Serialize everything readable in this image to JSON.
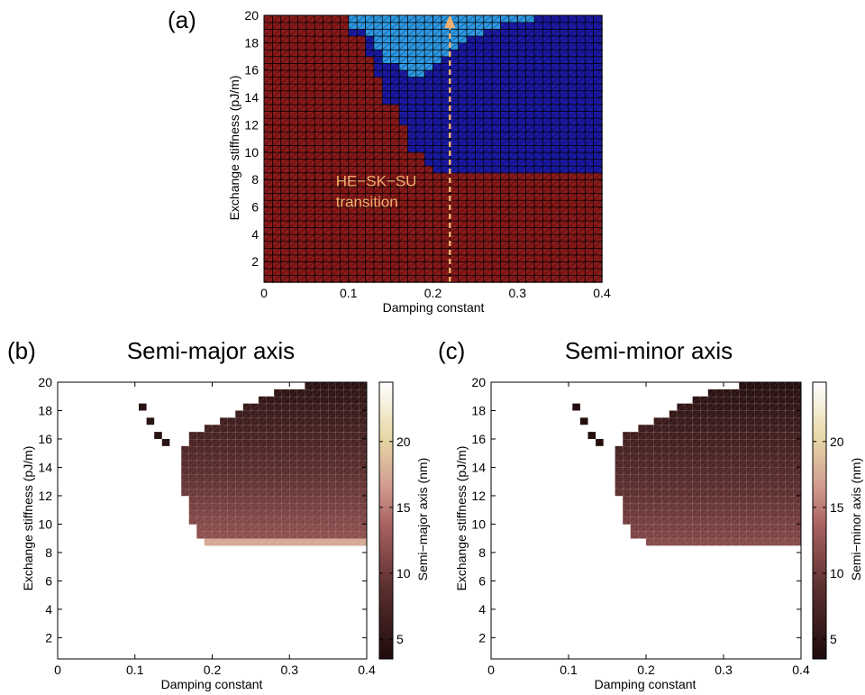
{
  "chart_data": [
    {
      "panel_label": "(a)",
      "type": "heatmap",
      "title": "",
      "xlabel": "Damping constant",
      "ylabel": "Exchange stiffness (pJ/m)",
      "xlim": [
        0,
        0.4
      ],
      "ylim": [
        0.5,
        20
      ],
      "xticks": [
        0,
        0.1,
        0.2,
        0.3,
        0.4
      ],
      "xtick_labels": [
        "0",
        "0.1",
        "0.2",
        "0.3",
        "0.4"
      ],
      "yticks": [
        2,
        4,
        6,
        8,
        10,
        12,
        14,
        16,
        18,
        20
      ],
      "ytick_labels": [
        "2",
        "4",
        "6",
        "8",
        "10",
        "12",
        "14",
        "16",
        "18",
        "20"
      ],
      "grid": {
        "x_start": 0,
        "x_step": 0.01,
        "x_count": 40,
        "y_start": 0.5,
        "y_step": 0.5,
        "y_count": 39
      },
      "categories": [
        "HE",
        "SK",
        "SU"
      ],
      "category_colors": {
        "HE": "#8b1a1a",
        "SK": "#1a1aa6",
        "SU": "#2e9ae6"
      },
      "sk_region": [
        {
          "y_from": 8.5,
          "y_to": 9.0,
          "x_from": 0.195
        },
        {
          "y_from": 9.0,
          "y_to": 10.0,
          "x_from": 0.185
        },
        {
          "y_from": 10.0,
          "y_to": 11.0,
          "x_from": 0.175
        },
        {
          "y_from": 11.0,
          "y_to": 12.0,
          "x_from": 0.165
        },
        {
          "y_from": 12.0,
          "y_to": 13.5,
          "x_from": 0.155
        },
        {
          "y_from": 13.5,
          "y_to": 14.5,
          "x_from": 0.145
        },
        {
          "y_from": 14.5,
          "y_to": 15.5,
          "x_from": 0.135
        },
        {
          "y_from": 15.5,
          "y_to": 17.0,
          "x_from": 0.125
        },
        {
          "y_from": 17.0,
          "y_to": 18.5,
          "x_from": 0.115
        },
        {
          "y_from": 18.5,
          "y_to": 20.5,
          "x_from": 0.105
        }
      ],
      "su_region": [
        {
          "y_from": 15.5,
          "y_to": 16.0,
          "x_from": 0.165,
          "x_to": 0.195
        },
        {
          "y_from": 16.0,
          "y_to": 16.5,
          "x_from": 0.155,
          "x_to": 0.205
        },
        {
          "y_from": 16.5,
          "y_to": 17.0,
          "x_from": 0.145,
          "x_to": 0.215
        },
        {
          "y_from": 17.0,
          "y_to": 17.5,
          "x_from": 0.135,
          "x_to": 0.225
        },
        {
          "y_from": 17.5,
          "y_to": 18.0,
          "x_from": 0.125,
          "x_to": 0.235
        },
        {
          "y_from": 18.0,
          "y_to": 18.5,
          "x_from": 0.125,
          "x_to": 0.245
        },
        {
          "y_from": 18.5,
          "y_to": 19.0,
          "x_from": 0.115,
          "x_to": 0.265
        },
        {
          "y_from": 19.0,
          "y_to": 19.5,
          "x_from": 0.105,
          "x_to": 0.285
        },
        {
          "y_from": 19.5,
          "y_to": 20.5,
          "x_from": 0.095,
          "x_to": 0.325
        }
      ],
      "annotation": {
        "text_lines": [
          "HE−SK−SU",
          "transition"
        ],
        "x": 0.085,
        "y": 7.5,
        "color": "#f2b06e",
        "arrow": {
          "x": 0.22,
          "y_from": 0.5,
          "y_to": 20
        }
      }
    },
    {
      "panel_label": "(b)",
      "type": "heatmap",
      "title": "Semi-major axis",
      "xlabel": "Damping constant",
      "ylabel": "Exchange stiffness (pJ/m)",
      "colorbar_label": "Semi−major axis (nm)",
      "clim": [
        3.5,
        24.5
      ],
      "colorbar_ticks": [
        5,
        10,
        15,
        20
      ],
      "xlim": [
        0,
        0.4
      ],
      "ylim": [
        0.5,
        20
      ],
      "xticks": [
        0,
        0.1,
        0.2,
        0.3,
        0.4
      ],
      "xtick_labels": [
        "0",
        "0.1",
        "0.2",
        "0.3",
        "0.4"
      ],
      "yticks": [
        2,
        4,
        6,
        8,
        10,
        12,
        14,
        16,
        18,
        20
      ],
      "ytick_labels": [
        "2",
        "4",
        "6",
        "8",
        "10",
        "12",
        "14",
        "16",
        "18",
        "20"
      ],
      "skyrmion_region": {
        "rows": [
          {
            "y_from": 8.5,
            "y_to": 9.0,
            "x_from": 0.195,
            "x_to": 0.4
          },
          {
            "y_from": 9.0,
            "y_to": 10.0,
            "x_from": 0.185,
            "x_to": 0.4
          },
          {
            "y_from": 10.0,
            "y_to": 11.0,
            "x_from": 0.175,
            "x_to": 0.4
          },
          {
            "y_from": 11.0,
            "y_to": 12.0,
            "x_from": 0.165,
            "x_to": 0.4
          },
          {
            "y_from": 12.0,
            "y_to": 15.5,
            "x_from": 0.155,
            "x_to": 0.4
          },
          {
            "y_from": 15.5,
            "y_to": 16.0,
            "x_from": 0.165,
            "x_to": 0.4
          },
          {
            "y_from": 16.0,
            "y_to": 16.5,
            "x_from": 0.175,
            "x_to": 0.4
          },
          {
            "y_from": 16.5,
            "y_to": 17.0,
            "x_from": 0.195,
            "x_to": 0.4
          },
          {
            "y_from": 17.0,
            "y_to": 17.5,
            "x_from": 0.215,
            "x_to": 0.4
          },
          {
            "y_from": 17.5,
            "y_to": 18.0,
            "x_from": 0.235,
            "x_to": 0.4
          },
          {
            "y_from": 18.0,
            "y_to": 18.5,
            "x_from": 0.245,
            "x_to": 0.4
          },
          {
            "y_from": 18.5,
            "y_to": 19.0,
            "x_from": 0.265,
            "x_to": 0.4
          },
          {
            "y_from": 19.0,
            "y_to": 19.5,
            "x_from": 0.285,
            "x_to": 0.4
          },
          {
            "y_from": 19.5,
            "y_to": 20.0,
            "x_from": 0.325,
            "x_to": 0.4
          }
        ],
        "isolated_cells": [
          [
            0.11,
            18.25
          ],
          [
            0.12,
            17.25
          ],
          [
            0.13,
            16.25
          ],
          [
            0.14,
            15.75
          ]
        ],
        "value_at_top": 4.5,
        "value_at_bottom": 12.5,
        "bottom_row_value": 17.5
      }
    },
    {
      "panel_label": "(c)",
      "type": "heatmap",
      "title": "Semi-minor axis",
      "xlabel": "Damping constant",
      "ylabel": "Exchange stiffness (pJ/m)",
      "colorbar_label": "Semi−minor axis (nm)",
      "clim": [
        3.5,
        24.5
      ],
      "colorbar_ticks": [
        5,
        10,
        15,
        20
      ],
      "xlim": [
        0,
        0.4
      ],
      "ylim": [
        0.5,
        20
      ],
      "xticks": [
        0,
        0.1,
        0.2,
        0.3,
        0.4
      ],
      "xtick_labels": [
        "0",
        "0.1",
        "0.2",
        "0.3",
        "0.4"
      ],
      "yticks": [
        2,
        4,
        6,
        8,
        10,
        12,
        14,
        16,
        18,
        20
      ],
      "ytick_labels": [
        "2",
        "4",
        "6",
        "8",
        "10",
        "12",
        "14",
        "16",
        "18",
        "20"
      ],
      "skyrmion_region": {
        "rows": [
          {
            "y_from": 8.5,
            "y_to": 9.0,
            "x_from": 0.205,
            "x_to": 0.4
          },
          {
            "y_from": 9.0,
            "y_to": 10.0,
            "x_from": 0.185,
            "x_to": 0.4
          },
          {
            "y_from": 10.0,
            "y_to": 11.0,
            "x_from": 0.175,
            "x_to": 0.4
          },
          {
            "y_from": 11.0,
            "y_to": 12.0,
            "x_from": 0.165,
            "x_to": 0.4
          },
          {
            "y_from": 12.0,
            "y_to": 15.5,
            "x_from": 0.155,
            "x_to": 0.4
          },
          {
            "y_from": 15.5,
            "y_to": 16.0,
            "x_from": 0.165,
            "x_to": 0.4
          },
          {
            "y_from": 16.0,
            "y_to": 16.5,
            "x_from": 0.175,
            "x_to": 0.4
          },
          {
            "y_from": 16.5,
            "y_to": 17.0,
            "x_from": 0.195,
            "x_to": 0.4
          },
          {
            "y_from": 17.0,
            "y_to": 17.5,
            "x_from": 0.215,
            "x_to": 0.4
          },
          {
            "y_from": 17.5,
            "y_to": 18.0,
            "x_from": 0.235,
            "x_to": 0.4
          },
          {
            "y_from": 18.0,
            "y_to": 18.5,
            "x_from": 0.245,
            "x_to": 0.4
          },
          {
            "y_from": 18.5,
            "y_to": 19.0,
            "x_from": 0.265,
            "x_to": 0.4
          },
          {
            "y_from": 19.0,
            "y_to": 19.5,
            "x_from": 0.285,
            "x_to": 0.4
          },
          {
            "y_from": 19.5,
            "y_to": 20.0,
            "x_from": 0.325,
            "x_to": 0.4
          }
        ],
        "isolated_cells": [
          [
            0.11,
            18.25
          ],
          [
            0.12,
            17.25
          ],
          [
            0.13,
            16.25
          ],
          [
            0.14,
            15.75
          ]
        ],
        "value_at_top": 4.0,
        "value_at_bottom": 11.5,
        "bottom_row_value": 11.5
      }
    }
  ]
}
